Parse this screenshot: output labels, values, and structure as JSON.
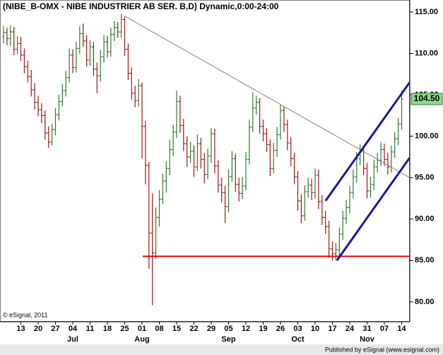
{
  "chart_data": {
    "type": "ohlc",
    "title": "(NIBE_B-OMX - NIBE INDUSTRIER AB SER. B,D) Dynamic,0:00-24:00",
    "copyright": "© eSignal, 2011",
    "publisher": "Published by eSignal (www.esignal.com)",
    "up_color": "#2e7d32",
    "down_color": "#a01818",
    "ylim": [
      77.6,
      116.45
    ],
    "yticks": [
      {
        "value": 80,
        "label": "80.00"
      },
      {
        "value": 85,
        "label": "85.00"
      },
      {
        "value": 90,
        "label": "90.00"
      },
      {
        "value": 95,
        "label": "95.00"
      },
      {
        "value": 100,
        "label": "100.00"
      },
      {
        "value": 105,
        "label": "105.00"
      },
      {
        "value": 110,
        "label": "110.00"
      },
      {
        "value": 115,
        "label": "115.00"
      }
    ],
    "last_label": "104.50",
    "categories": [
      null,
      null,
      null,
      null,
      null,
      "13",
      null,
      null,
      null,
      null,
      "20",
      null,
      null,
      null,
      null,
      "27",
      null,
      null,
      null,
      null,
      "04",
      null,
      null,
      null,
      null,
      "11",
      null,
      null,
      null,
      null,
      "18",
      null,
      null,
      null,
      null,
      "25",
      null,
      null,
      null,
      null,
      "01",
      null,
      null,
      null,
      null,
      "08",
      null,
      null,
      null,
      null,
      "15",
      null,
      null,
      null,
      null,
      "22",
      null,
      null,
      null,
      null,
      "29",
      null,
      null,
      null,
      null,
      "05",
      null,
      null,
      null,
      null,
      "12",
      null,
      null,
      null,
      null,
      "19",
      null,
      null,
      null,
      null,
      "26",
      null,
      null,
      null,
      null,
      "03",
      null,
      null,
      null,
      null,
      "10",
      null,
      null,
      null,
      null,
      "17",
      null,
      null,
      null,
      null,
      "24",
      null,
      null,
      null,
      null,
      "31",
      null,
      null,
      null,
      null,
      "07",
      null,
      null,
      null,
      null,
      "14"
    ],
    "month_labels": [
      {
        "label": "Jul",
        "category": 20
      },
      {
        "label": "Aug",
        "category": 40
      },
      {
        "label": "Sep",
        "category": 65
      },
      {
        "label": "Oct",
        "category": 85
      },
      {
        "label": "Nov",
        "category": 105
      }
    ],
    "open": [
      112.0,
      112.5,
      111.8,
      112.6,
      110.5,
      111.2,
      109.8,
      108.4,
      107.2,
      105.6,
      104.1,
      103.2,
      102.5,
      100.4,
      99.3,
      100.8,
      102.6,
      104.2,
      105.5,
      107.1,
      109.8,
      108.3,
      110.6,
      112.4,
      111.5,
      109.2,
      110.8,
      108.1,
      107.3,
      109.6,
      111.4,
      110.2,
      112.3,
      113.1,
      112.6,
      114.1,
      110.5,
      107.6,
      105.2,
      104.3,
      106.1,
      101.2,
      96.5,
      88.3,
      85.9,
      90.2,
      92.4,
      94.6,
      96.1,
      98.4,
      100.5,
      104.2,
      101.3,
      99.1,
      97.5,
      98.2,
      96.3,
      99.1,
      97.2,
      95.4,
      97.6,
      100.3,
      96.4,
      94.1,
      93.2,
      91.5,
      95.1,
      97.3,
      94.2,
      93.1,
      94.0,
      97.2,
      101.1,
      103.4,
      104.1,
      101.2,
      100.3,
      99.0,
      96.1,
      98.3,
      100.2,
      103.1,
      101.4,
      99.2,
      97.3,
      95.1,
      92.2,
      90.4,
      93.3,
      94.1,
      93.2,
      95.3,
      92.1,
      90.2,
      89.1,
      86.4,
      85.8,
      86.3,
      88.2,
      90.1,
      91.4,
      93.2,
      95.1,
      97.3,
      98.2,
      96.1,
      93.4,
      94.2,
      96.3,
      97.1,
      98.4,
      97.2,
      96.3,
      98.1,
      99.7,
      101.5
    ],
    "high": [
      113.3,
      113.1,
      113.4,
      113.2,
      112.1,
      112.0,
      110.6,
      109.1,
      108.0,
      106.4,
      104.9,
      104.0,
      103.1,
      101.2,
      101.5,
      103.4,
      105.0,
      106.3,
      107.9,
      110.6,
      110.5,
      111.4,
      113.3,
      113.6,
      112.2,
      111.6,
      111.4,
      108.9,
      110.4,
      112.2,
      112.1,
      113.1,
      113.9,
      113.8,
      114.8,
      114.4,
      111.2,
      108.3,
      106.1,
      106.9,
      106.5,
      101.8,
      96.9,
      93.1,
      91.4,
      93.5,
      95.5,
      97.0,
      99.6,
      101.4,
      105.5,
      104.9,
      102.1,
      100.0,
      99.3,
      98.9,
      100.2,
      99.8,
      98.0,
      98.5,
      101.0,
      100.9,
      97.1,
      95.0,
      94.0,
      96.0,
      98.2,
      97.9,
      95.0,
      95.1,
      98.1,
      102.0,
      105.3,
      104.9,
      104.6,
      102.0,
      101.0,
      99.6,
      99.2,
      101.1,
      103.8,
      103.6,
      102.0,
      99.9,
      98.0,
      95.8,
      93.0,
      94.1,
      95.0,
      94.9,
      96.1,
      96.0,
      92.9,
      91.0,
      89.8,
      87.3,
      87.1,
      89.0,
      91.0,
      92.3,
      94.0,
      96.0,
      98.1,
      99.0,
      98.9,
      96.8,
      95.1,
      97.2,
      98.0,
      99.3,
      99.1,
      98.0,
      98.9,
      100.5,
      102.2,
      105.5
    ],
    "low": [
      111.2,
      111.0,
      110.9,
      109.8,
      109.9,
      109.1,
      107.6,
      106.5,
      104.8,
      103.2,
      102.4,
      101.6,
      99.6,
      98.6,
      98.9,
      100.1,
      101.9,
      103.6,
      104.8,
      106.5,
      107.6,
      107.7,
      109.9,
      110.8,
      108.4,
      108.5,
      107.3,
      105.2,
      106.6,
      108.9,
      109.5,
      109.6,
      111.5,
      111.9,
      111.9,
      109.7,
      106.8,
      104.4,
      103.5,
      103.6,
      97.3,
      94.2,
      84.0,
      79.6,
      85.2,
      89.1,
      91.8,
      93.2,
      95.3,
      97.6,
      99.8,
      100.4,
      98.2,
      96.3,
      96.8,
      95.1,
      95.8,
      96.1,
      94.3,
      94.8,
      96.8,
      95.5,
      93.2,
      92.0,
      89.5,
      90.8,
      94.5,
      93.3,
      92.1,
      92.4,
      93.5,
      96.6,
      100.5,
      102.6,
      100.3,
      99.4,
      98.1,
      95.2,
      95.5,
      97.5,
      99.6,
      100.5,
      98.3,
      96.4,
      94.2,
      91.0,
      89.5,
      89.8,
      92.6,
      92.3,
      92.5,
      91.2,
      89.3,
      88.2,
      85.3,
      85.0,
      85.0,
      85.6,
      87.5,
      89.4,
      90.7,
      92.5,
      94.4,
      96.5,
      95.3,
      92.5,
      92.6,
      93.5,
      95.6,
      96.4,
      96.4,
      95.4,
      95.6,
      97.4,
      98.9,
      100.8
    ],
    "close": [
      112.5,
      111.8,
      112.6,
      110.5,
      111.2,
      109.8,
      108.4,
      107.2,
      105.6,
      104.1,
      103.2,
      102.5,
      100.4,
      99.3,
      100.8,
      102.6,
      104.2,
      105.5,
      107.1,
      109.8,
      108.3,
      110.6,
      112.4,
      111.5,
      109.2,
      110.8,
      108.1,
      107.3,
      109.6,
      111.4,
      110.2,
      112.3,
      113.1,
      112.6,
      114.1,
      110.5,
      107.6,
      105.2,
      104.3,
      106.1,
      101.2,
      96.5,
      88.3,
      85.9,
      90.2,
      92.4,
      94.6,
      96.1,
      98.4,
      100.5,
      104.2,
      101.3,
      99.1,
      97.5,
      98.2,
      96.3,
      99.1,
      97.2,
      95.4,
      97.6,
      100.3,
      96.4,
      94.1,
      93.2,
      91.5,
      95.1,
      97.3,
      94.2,
      93.1,
      94.0,
      97.2,
      101.1,
      103.4,
      104.1,
      101.2,
      100.3,
      99.0,
      96.1,
      98.3,
      100.2,
      103.1,
      101.4,
      99.2,
      97.3,
      95.1,
      92.2,
      90.4,
      93.3,
      94.1,
      93.2,
      95.3,
      92.1,
      90.2,
      89.1,
      86.4,
      85.8,
      86.3,
      88.2,
      90.1,
      91.4,
      93.2,
      95.1,
      97.3,
      98.2,
      96.1,
      93.4,
      94.2,
      96.3,
      97.1,
      98.4,
      97.2,
      96.3,
      98.1,
      99.7,
      101.5,
      104.5
    ],
    "trendlines": [
      {
        "color": "#808080",
        "width": 1,
        "from": {
          "category": 35,
          "value": 114.5
        },
        "to": {
          "category": 117.3,
          "value": 95.0
        }
      },
      {
        "color": "#e00000",
        "width": 2,
        "from": {
          "category": 40.2,
          "value": 85.5
        },
        "to": {
          "category": 117.3,
          "value": 85.5
        }
      },
      {
        "color": "#1a1a9c",
        "width": 3,
        "from": {
          "category": 96.3,
          "value": 85.0
        },
        "to": {
          "category": 117.3,
          "value": 97.4
        }
      },
      {
        "color": "#1a1a9c",
        "width": 3,
        "from": {
          "category": 93.0,
          "value": 92.2
        },
        "to": {
          "category": 117.3,
          "value": 106.5
        }
      }
    ]
  }
}
